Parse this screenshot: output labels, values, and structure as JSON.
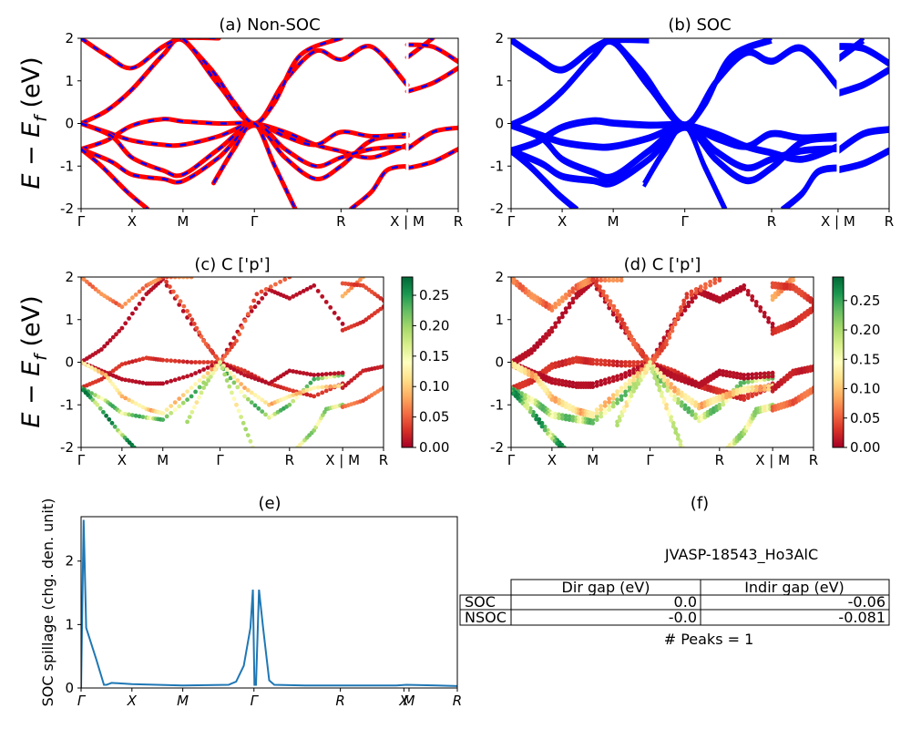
{
  "panel_titles": {
    "a": "(a) Non-SOC",
    "b": "(b) SOC",
    "c": "(c)  C ['p']",
    "d": "(d) C ['p']",
    "e": "(e)",
    "f": "(f)"
  },
  "band_ylabel_main": "E − E",
  "band_ylabel_sub": "f",
  "band_ylabel_unit": " (eV)",
  "kpath_labels": [
    "Γ",
    "X",
    "M",
    "Γ",
    "R",
    "X | M",
    "R"
  ],
  "kpath_positions": [
    0,
    1,
    2,
    3.4,
    5.1,
    6.4,
    7.4
  ],
  "colors": {
    "nonsoc_red": "#ff0000",
    "nonsoc_blue": "#0000ff",
    "soc_blue": "#0000ff",
    "spillage_line": "#1f77b4",
    "colormap": [
      "#a50026",
      "#d73027",
      "#f46d43",
      "#fdae61",
      "#fee08b",
      "#ffffbf",
      "#d9ef8b",
      "#a6d96a",
      "#66bd63",
      "#1a9850",
      "#006837"
    ]
  },
  "chart_data": [
    {
      "id": "a",
      "type": "line",
      "title": "(a) Non-SOC",
      "ylabel": "E − E_f (eV)",
      "ylim": [
        -2,
        2
      ],
      "yticks": [
        -2,
        -1,
        0,
        1,
        2
      ],
      "xticklabels": [
        "Γ",
        "X",
        "M",
        "Γ",
        "R",
        "X | M",
        "R"
      ]
    },
    {
      "id": "b",
      "type": "line",
      "title": "(b) SOC",
      "ylim": [
        -2,
        2
      ],
      "yticks": [
        -2,
        -1,
        0,
        1,
        2
      ],
      "xticklabels": [
        "Γ",
        "X",
        "M",
        "Γ",
        "R",
        "X | M",
        "R"
      ]
    },
    {
      "id": "c",
      "type": "scatter",
      "title": "(c)  C ['p']",
      "ylabel": "E − E_f (eV)",
      "ylim": [
        -2,
        2
      ],
      "yticks": [
        -2,
        -1,
        0,
        1,
        2
      ],
      "xticklabels": [
        "Γ",
        "X",
        "M",
        "Γ",
        "R",
        "X | M",
        "R"
      ],
      "colorbar": {
        "range": [
          0,
          0.28
        ],
        "ticks": [
          "0.00",
          "0.05",
          "0.10",
          "0.15",
          "0.20",
          "0.25"
        ],
        "cmap": "RdYlGn"
      }
    },
    {
      "id": "d",
      "type": "scatter",
      "title": "(d) C ['p']",
      "ylim": [
        -2,
        2
      ],
      "yticks": [
        -2,
        -1,
        0,
        1,
        2
      ],
      "xticklabels": [
        "Γ",
        "X",
        "M",
        "Γ",
        "R",
        "X | M",
        "R"
      ],
      "colorbar": {
        "range": [
          0,
          0.29
        ],
        "ticks": [
          "0.00",
          "0.05",
          "0.10",
          "0.15",
          "0.20",
          "0.25"
        ],
        "cmap": "RdYlGn"
      }
    },
    {
      "id": "e",
      "type": "line",
      "title": "(e)",
      "ylabel": "SOC spillage (chg. den. unit)",
      "ylim": [
        0,
        2.7
      ],
      "yticks": [
        0,
        1,
        2
      ],
      "xticklabels": [
        "Γ",
        "X",
        "M",
        "Γ",
        "R",
        "X",
        "M",
        "R"
      ],
      "x": [
        0,
        0.05,
        0.1,
        0.3,
        0.45,
        0.5,
        0.6,
        1.0,
        2.0,
        2.9,
        3.05,
        3.2,
        3.33,
        3.38,
        3.41,
        3.44,
        3.5,
        3.58,
        3.7,
        3.8,
        4.4,
        5.1,
        6.2,
        6.4,
        7.0,
        7.4
      ],
      "y": [
        0,
        2.65,
        0.95,
        0.45,
        0.05,
        0.05,
        0.08,
        0.06,
        0.04,
        0.05,
        0.1,
        0.35,
        0.95,
        1.55,
        0.05,
        0.05,
        1.55,
        0.95,
        0.12,
        0.05,
        0.04,
        0.04,
        0.04,
        0.05,
        0.04,
        0.03
      ]
    },
    {
      "id": "f",
      "type": "table",
      "title": "(f)",
      "subtitle": "JVASP-18543_Ho3AlC",
      "columns": [
        "Dir gap (eV)",
        "Indir gap (eV)"
      ],
      "rows": [
        {
          "label": "SOC",
          "values": [
            "0.0",
            "-0.06"
          ]
        },
        {
          "label": "NSOC",
          "values": [
            "-0.0",
            "-0.081"
          ]
        }
      ],
      "footer": "# Peaks = 1"
    }
  ]
}
